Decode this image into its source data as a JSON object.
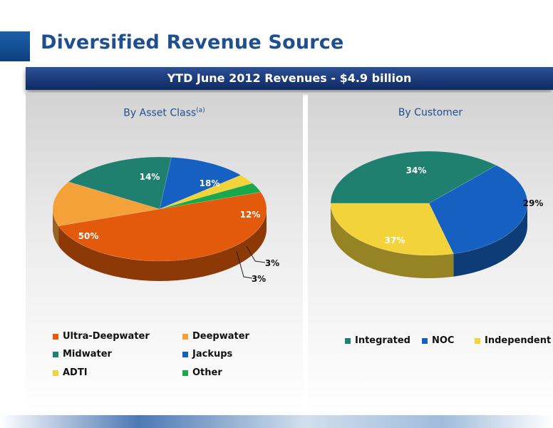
{
  "slide": {
    "title": "Diversified Revenue Source",
    "banner": "YTD  June 2012 Revenues - $4.9 billion"
  },
  "chart_data": [
    {
      "type": "pie",
      "title": "By Asset Class",
      "title_superscript": "(a)",
      "categories": [
        "Ultra-Deepwater",
        "Deepwater",
        "Midwater",
        "Jackups",
        "ADTI",
        "Other"
      ],
      "values": [
        50,
        14,
        18,
        12,
        3,
        3
      ],
      "labels": [
        "50%",
        "14%",
        "18%",
        "12%",
        "3%",
        "3%"
      ],
      "colors": [
        "#e35a0c",
        "#f5a13a",
        "#1f8070",
        "#1560c0",
        "#f2d43a",
        "#19a84c"
      ],
      "legend_position": "bottom"
    },
    {
      "type": "pie",
      "title": "By Customer",
      "categories": [
        "Integrated",
        "NOC",
        "Independent"
      ],
      "values": [
        37,
        34,
        29
      ],
      "labels": [
        "37%",
        "34%",
        "29%"
      ],
      "colors": [
        "#1f8070",
        "#1560c0",
        "#f2d43a"
      ],
      "legend_position": "bottom"
    }
  ]
}
